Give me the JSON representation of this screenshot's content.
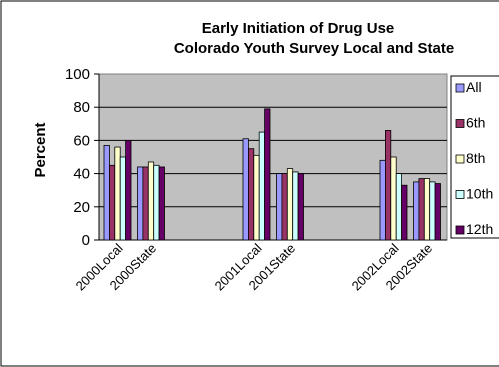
{
  "colors": {
    "plot_background": "#c0c0c0",
    "border": "#808080",
    "series": [
      "#9999ff",
      "#993366",
      "#ffffcc",
      "#ccffff",
      "#660066"
    ]
  },
  "chart_data": {
    "type": "bar",
    "title": "Early Initiation of Drug Use",
    "subtitle": "Colorado Youth Survey Local and State",
    "xlabel": "",
    "ylabel": "Percent",
    "ylim": [
      0,
      100
    ],
    "yticks": [
      0,
      20,
      40,
      60,
      80,
      100
    ],
    "grid": true,
    "legend_position": "right",
    "categories": [
      "2000Local",
      "2000State",
      "2001Local",
      "2001State",
      "2002Local",
      "2002State"
    ],
    "series": [
      {
        "name": "All",
        "values": [
          57,
          44,
          61,
          40,
          48,
          35
        ]
      },
      {
        "name": "6th",
        "values": [
          45,
          44,
          55,
          40,
          66,
          37
        ]
      },
      {
        "name": "8th",
        "values": [
          56,
          47,
          51,
          43,
          50,
          37
        ]
      },
      {
        "name": "10th",
        "values": [
          50,
          45,
          65,
          41,
          40,
          35
        ]
      },
      {
        "name": "12th",
        "values": [
          60,
          44,
          79,
          40,
          33,
          34
        ]
      }
    ]
  }
}
